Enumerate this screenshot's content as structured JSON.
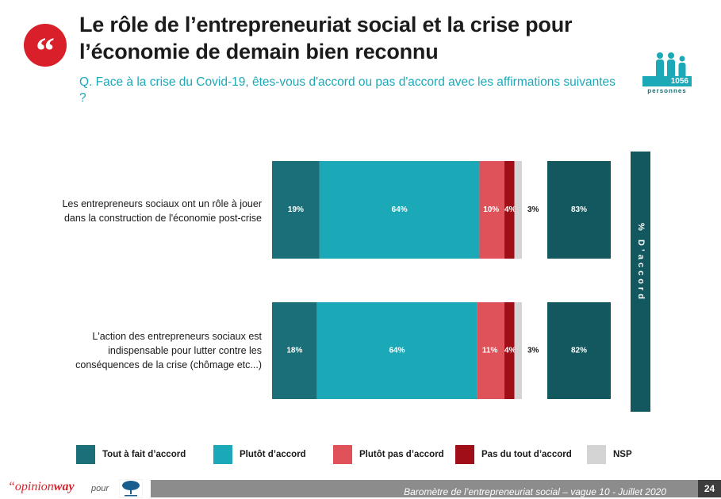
{
  "title": {
    "line1": "Le rôle de l’entrepreneuriat social et la crise pour",
    "line2": "l’économie de demain bien reconnu"
  },
  "question": "Q. Face à la crise du Covid-19, êtes-vous d'accord ou pas d'accord avec les affirmations suivantes ?",
  "sample": {
    "count": "1056",
    "label": "personnes"
  },
  "accord_header": "% D’accord",
  "colors": {
    "tout_a_fait": "#1b6f78",
    "plutot": "#1ba9b8",
    "plutot_pas": "#e0525a",
    "pas_du_tout": "#a00f18",
    "nsp": "#d4d4d4",
    "accord_total": "#12585e",
    "brand_red": "#d81f2a"
  },
  "chart_data": {
    "type": "bar",
    "orientation": "horizontal",
    "stacked": true,
    "categories": [
      [
        "Les entrepreneurs sociaux ont un rôle à jouer",
        "dans la construction de l'économie post-crise"
      ],
      [
        "L'action des entrepreneurs sociaux est",
        "indispensable pour lutter contre les",
        "conséquences de la crise (chômage etc...)"
      ]
    ],
    "series": [
      {
        "name": "Tout à fait d’accord",
        "values": [
          19,
          18
        ],
        "labels": [
          "19%",
          "18%"
        ]
      },
      {
        "name": "Plutôt d’accord",
        "values": [
          64,
          64
        ],
        "labels": [
          "64%",
          "64%"
        ]
      },
      {
        "name": "Plutôt pas d’accord",
        "values": [
          10,
          11
        ],
        "labels": [
          "10%",
          "11%"
        ]
      },
      {
        "name": "Pas du tout d’accord",
        "values": [
          4,
          4
        ],
        "labels": [
          "4%",
          "4%"
        ]
      },
      {
        "name": "NSP",
        "values": [
          3,
          3
        ],
        "labels": [
          "3%",
          "3%"
        ]
      }
    ],
    "totals": {
      "name": "% D’accord",
      "values": [
        83,
        82
      ],
      "labels": [
        "83%",
        "82%"
      ]
    },
    "legend": [
      "Tout à fait d’accord",
      "Plutôt d’accord",
      "Plutôt pas d’accord",
      "Pas du tout d’accord",
      "NSP"
    ],
    "legend_position": "bottom",
    "xlim": [
      0,
      100
    ]
  },
  "footer": {
    "brand_prefix": "“opinion",
    "brand_suffix": "way",
    "pour": "pour",
    "caption": "Baromètre de l’entrepreneuriat social – vague 10 - Juillet 2020",
    "page": "24"
  }
}
